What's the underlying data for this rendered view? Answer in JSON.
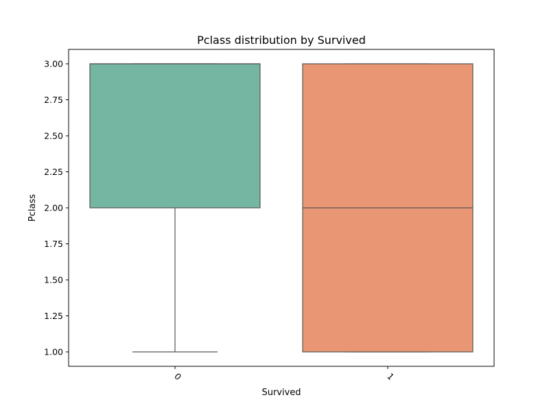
{
  "chart_data": {
    "type": "box",
    "title": "Pclass distribution by Survived",
    "xlabel": "Survived",
    "ylabel": "Pclass",
    "categories": [
      "0",
      "1"
    ],
    "ylim": [
      0.9,
      3.1
    ],
    "yticks": [
      1.0,
      1.25,
      1.5,
      1.75,
      2.0,
      2.25,
      2.5,
      2.75,
      3.0
    ],
    "ytick_labels": [
      "1.00",
      "1.25",
      "1.50",
      "1.75",
      "2.00",
      "2.25",
      "2.50",
      "2.75",
      "3.00"
    ],
    "boxes": [
      {
        "category": "0",
        "whisker_low": 1.0,
        "q1": 2.0,
        "median": 3.0,
        "q3": 3.0,
        "whisker_high": 3.0,
        "color": "#75b6a2"
      },
      {
        "category": "1",
        "whisker_low": 1.0,
        "q1": 1.0,
        "median": 2.0,
        "q3": 3.0,
        "whisker_high": 3.0,
        "color": "#e99674"
      }
    ],
    "line_color": "#555555",
    "grid": false,
    "x_tick_rotation": "45deg"
  }
}
